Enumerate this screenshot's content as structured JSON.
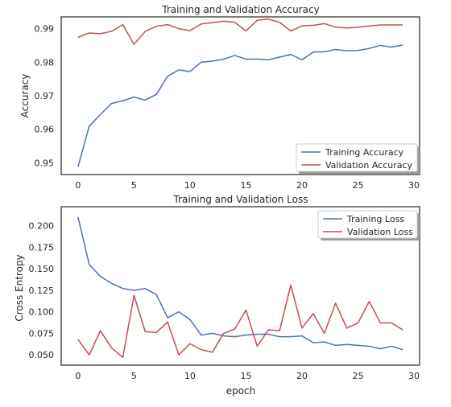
{
  "chart_data": [
    {
      "type": "line",
      "title": "Training and Validation Accuracy",
      "xlabel": "",
      "ylabel": "Accuracy",
      "xlim": [
        -1.5,
        30.5
      ],
      "ylim": [
        0.9465,
        0.9935
      ],
      "xticks": [
        0,
        5,
        10,
        15,
        20,
        25,
        30
      ],
      "yticks": [
        0.95,
        0.96,
        0.97,
        0.98,
        0.99
      ],
      "grid": false,
      "legend_position": "lower-right",
      "x": [
        0,
        1,
        2,
        3,
        4,
        5,
        6,
        7,
        8,
        9,
        10,
        11,
        12,
        13,
        14,
        15,
        16,
        17,
        18,
        19,
        20,
        21,
        22,
        23,
        24,
        25,
        26,
        27,
        28,
        29
      ],
      "series": [
        {
          "name": "Training Accuracy",
          "color": "#4c72b0",
          "values": [
            0.9488,
            0.9609,
            0.9644,
            0.9677,
            0.9685,
            0.9696,
            0.9687,
            0.9704,
            0.9758,
            0.9777,
            0.9772,
            0.98,
            0.9803,
            0.9809,
            0.982,
            0.9809,
            0.9809,
            0.9807,
            0.9815,
            0.9823,
            0.9807,
            0.983,
            0.9831,
            0.9838,
            0.9834,
            0.9835,
            0.9841,
            0.985,
            0.9845,
            0.9851
          ]
        },
        {
          "name": "Validation Accuracy",
          "color": "#c44e52",
          "values": [
            0.9874,
            0.9887,
            0.9885,
            0.9892,
            0.9912,
            0.9853,
            0.9892,
            0.9907,
            0.9912,
            0.99,
            0.9894,
            0.9914,
            0.9918,
            0.9922,
            0.9919,
            0.9893,
            0.9925,
            0.9928,
            0.9919,
            0.9893,
            0.9908,
            0.991,
            0.9915,
            0.9904,
            0.9902,
            0.9904,
            0.9908,
            0.9911,
            0.9911,
            0.9911
          ]
        }
      ]
    },
    {
      "type": "line",
      "title": "Training and Validation Loss",
      "xlabel": "epoch",
      "ylabel": "Cross Entropy",
      "xlim": [
        -1.5,
        30.5
      ],
      "ylim": [
        0.038,
        0.222
      ],
      "xticks": [
        0,
        5,
        10,
        15,
        20,
        25,
        30
      ],
      "yticks": [
        0.05,
        0.075,
        0.1,
        0.125,
        0.15,
        0.175,
        0.2
      ],
      "grid": false,
      "legend_position": "upper-right",
      "x": [
        0,
        1,
        2,
        3,
        4,
        5,
        6,
        7,
        8,
        9,
        10,
        11,
        12,
        13,
        14,
        15,
        16,
        17,
        18,
        19,
        20,
        21,
        22,
        23,
        24,
        25,
        26,
        27,
        28,
        29
      ],
      "series": [
        {
          "name": "Training Loss",
          "color": "#4c72b0",
          "values": [
            0.21,
            0.155,
            0.141,
            0.133,
            0.127,
            0.125,
            0.127,
            0.12,
            0.093,
            0.1,
            0.091,
            0.073,
            0.075,
            0.072,
            0.071,
            0.073,
            0.074,
            0.074,
            0.071,
            0.071,
            0.072,
            0.064,
            0.065,
            0.061,
            0.062,
            0.061,
            0.06,
            0.057,
            0.06,
            0.056
          ]
        },
        {
          "name": "Validation Loss",
          "color": "#c44e52",
          "values": [
            0.068,
            0.05,
            0.078,
            0.058,
            0.047,
            0.119,
            0.077,
            0.076,
            0.088,
            0.05,
            0.063,
            0.056,
            0.053,
            0.075,
            0.08,
            0.102,
            0.06,
            0.079,
            0.078,
            0.131,
            0.081,
            0.098,
            0.075,
            0.11,
            0.081,
            0.087,
            0.112,
            0.087,
            0.087,
            0.079
          ]
        }
      ]
    }
  ]
}
